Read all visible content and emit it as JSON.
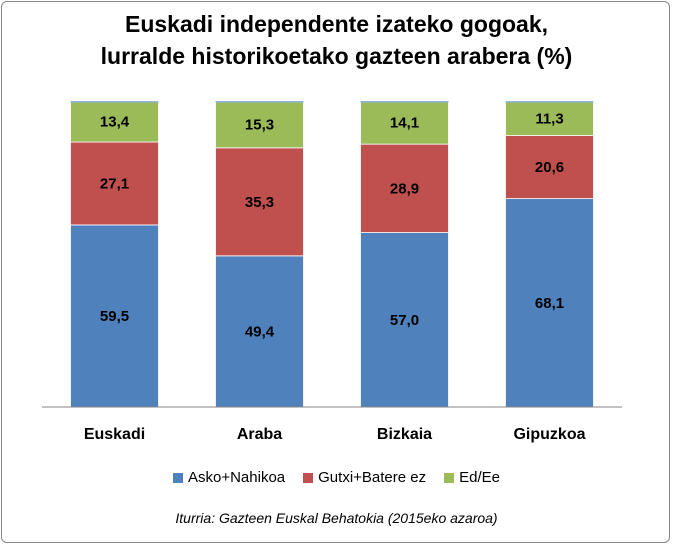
{
  "chart_data": {
    "type": "bar",
    "stacked": true,
    "title_line1": "Euskadi independente izateko gogoak,",
    "title_line2": "lurralde historikoetako gazteen arabera (%)",
    "categories": [
      "Euskadi",
      "Araba",
      "Bizkaia",
      "Gipuzkoa"
    ],
    "series": [
      {
        "name": "Asko+Nahikoa",
        "color": "#4F81BD",
        "values": [
          59.5,
          49.4,
          57.0,
          68.1
        ],
        "labels": [
          "59,5",
          "49,4",
          "57,0",
          "68,1"
        ]
      },
      {
        "name": "Gutxi+Batere ez",
        "color": "#C0504D",
        "values": [
          27.1,
          35.3,
          28.9,
          20.6
        ],
        "labels": [
          "27,1",
          "35,3",
          "28,9",
          "20,6"
        ]
      },
      {
        "name": "Ed/Ee",
        "color": "#9BBB59",
        "values": [
          13.4,
          15.3,
          14.1,
          11.3
        ],
        "labels": [
          "13,4",
          "15,3",
          "14,1",
          "11,3"
        ]
      }
    ],
    "ylim": [
      0,
      100
    ],
    "grid": false,
    "legend_position": "bottom"
  },
  "source_note": "Iturria: Gazteen Euskal Behatokia (2015eko azaroa)"
}
